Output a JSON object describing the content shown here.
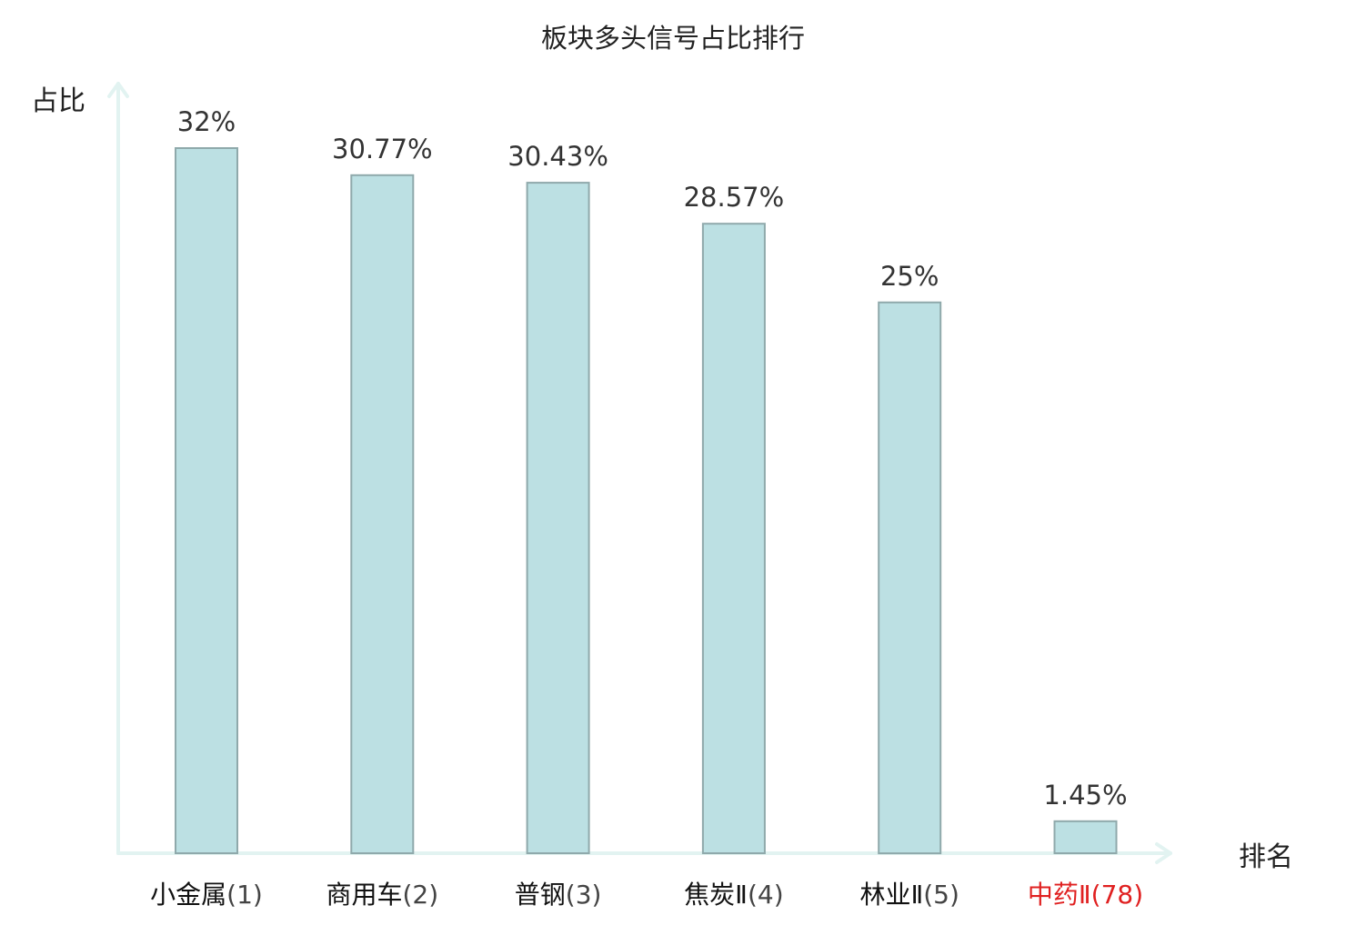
{
  "chart_data": {
    "type": "bar",
    "title": "板块多头信号占比排行",
    "ylabel": "占比",
    "xlabel": "排名",
    "ylim": [
      0,
      32
    ],
    "grid": false,
    "legend": "none",
    "categories": [
      {
        "name": "小金属",
        "rank": "(1)",
        "highlight": false
      },
      {
        "name": "商用车",
        "rank": "(2)",
        "highlight": false
      },
      {
        "name": "普钢",
        "rank": "(3)",
        "highlight": false
      },
      {
        "name": "焦炭Ⅱ",
        "rank": "(4)",
        "highlight": false
      },
      {
        "name": "林业Ⅱ",
        "rank": "(5)",
        "highlight": false
      },
      {
        "name": "中药Ⅱ",
        "rank": "(78)",
        "highlight": true
      }
    ],
    "values": [
      32,
      30.77,
      30.43,
      28.57,
      25,
      1.45
    ],
    "value_labels": [
      "32%",
      "30.77%",
      "30.43%",
      "28.57%",
      "25%",
      "1.45%"
    ],
    "colors": {
      "bar_fill": "#bce0e3",
      "bar_stroke": "#8fa9ab",
      "axis": "#e2f3f1",
      "label_text": "#111111",
      "highlight_text": "#e02020"
    }
  }
}
